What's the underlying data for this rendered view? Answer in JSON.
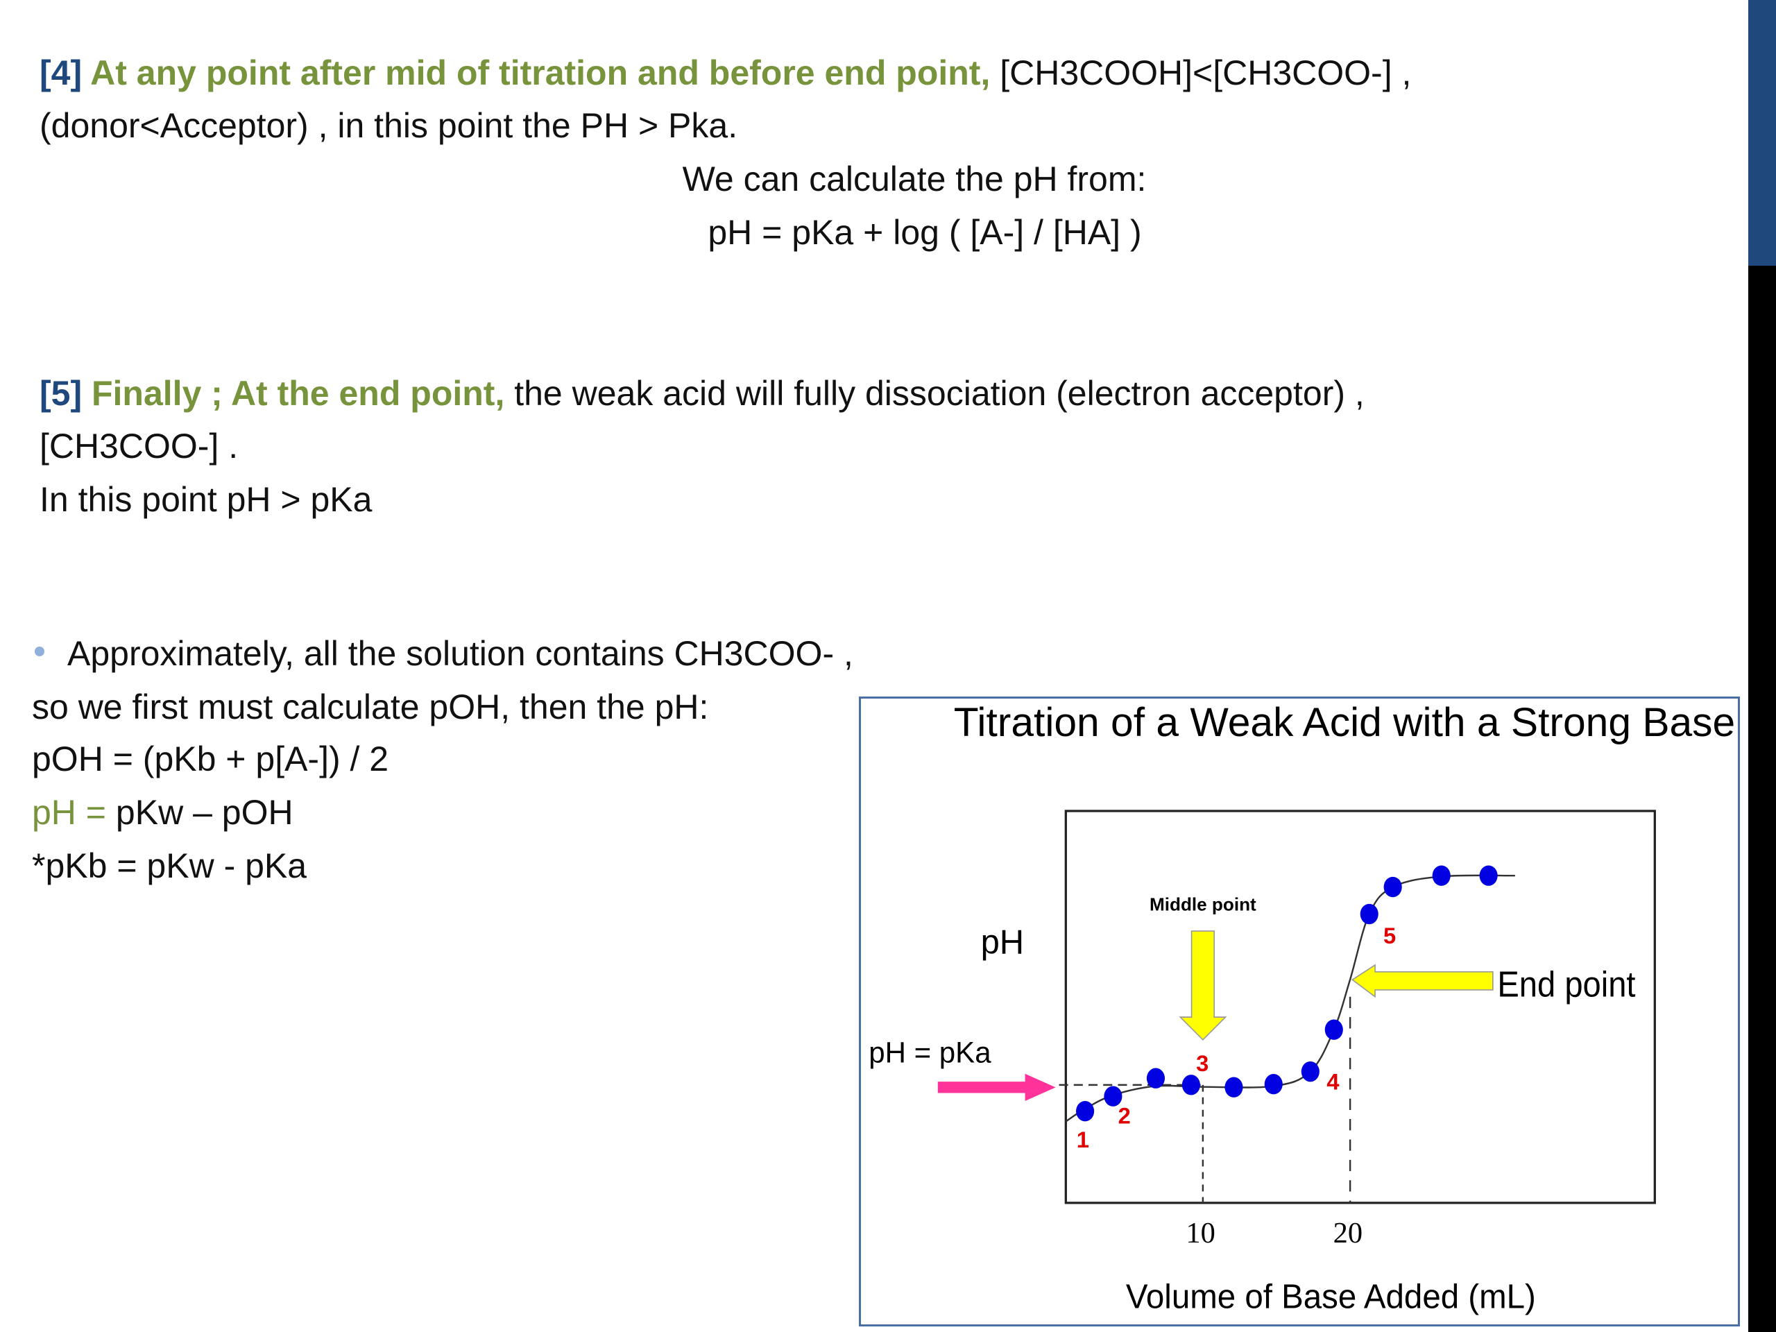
{
  "colors": {
    "accent_blue": "#1f497d",
    "accent_green": "#77933c",
    "marker": "#0000e0",
    "label_red": "#e00000",
    "arrow_yellow": "#ffff00",
    "arrow_pink": "#ff3399"
  },
  "section4": {
    "num": "[4]",
    "lead": " At any point after mid of titration and before end point,",
    "rest": " [CH3COOH]<[CH3COO-] ,",
    "line2": "(donor<Acceptor) , in this point the PH > Pka.",
    "calc": "We can calculate the pH from:",
    "formula": "pH = pKa + log ( [A-] / [HA] )"
  },
  "section5": {
    "num": "[5]",
    "lead": " Finally ; At the end point,",
    "rest": " the weak acid will  fully  dissociation (electron acceptor) ,",
    "line2": "[CH3COO-] .",
    "line3": "In this point pH > pKa"
  },
  "bullet": {
    "line1": "Approximately, all the solution contains CH3COO- ,",
    "line2": "so we first must calculate pOH, then the pH:",
    "line3": "pOH = (pKb + p[A-]) / 2",
    "line4_green": "pH =",
    "line4_rest": " pKw – pOH",
    "line5": "*pKb = pKw - pKa"
  },
  "chart_data": {
    "type": "line",
    "title": "Titration of a Weak Acid with a Strong Base",
    "xlabel": "Volume of Base Added (mL)",
    "ylabel": "pH",
    "x_ticks": [
      "10",
      "20"
    ],
    "xlim": [
      0.7,
      40.7
    ],
    "y_units": "relative (no tick labels shown)",
    "ylim": [
      0,
      100
    ],
    "grid": false,
    "points": [
      {
        "x": 2.0,
        "y": 23.4,
        "label": "1"
      },
      {
        "x": 3.9,
        "y": 27.2,
        "label": "2"
      },
      {
        "x": 6.8,
        "y": 31.8,
        "label": ""
      },
      {
        "x": 9.2,
        "y": 30.1,
        "label": "3"
      },
      {
        "x": 12.1,
        "y": 29.5,
        "label": ""
      },
      {
        "x": 14.8,
        "y": 30.3,
        "label": ""
      },
      {
        "x": 17.3,
        "y": 33.5,
        "label": "4"
      },
      {
        "x": 18.9,
        "y": 44.2,
        "label": ""
      },
      {
        "x": 21.3,
        "y": 73.7,
        "label": "5"
      },
      {
        "x": 22.9,
        "y": 80.6,
        "label": ""
      },
      {
        "x": 26.2,
        "y": 83.5,
        "label": ""
      },
      {
        "x": 29.4,
        "y": 83.5,
        "label": ""
      }
    ],
    "curve": [
      [
        0.7,
        20.8
      ],
      [
        2.0,
        24
      ],
      [
        3.9,
        27.5
      ],
      [
        6.8,
        29.8
      ],
      [
        10,
        29.6
      ],
      [
        14.8,
        29.8
      ],
      [
        17.3,
        33.5
      ],
      [
        18.9,
        44.2
      ],
      [
        20,
        57
      ],
      [
        21.3,
        73.7
      ],
      [
        22.9,
        80.6
      ],
      [
        26.2,
        83.3
      ],
      [
        31.2,
        83.5
      ]
    ],
    "annotations": {
      "middle_point": "Middle point",
      "end_point": "End point",
      "ph_pka": "pH = pKa",
      "pka_level": 30.1,
      "middle_x": 10,
      "end_x": 20
    }
  }
}
